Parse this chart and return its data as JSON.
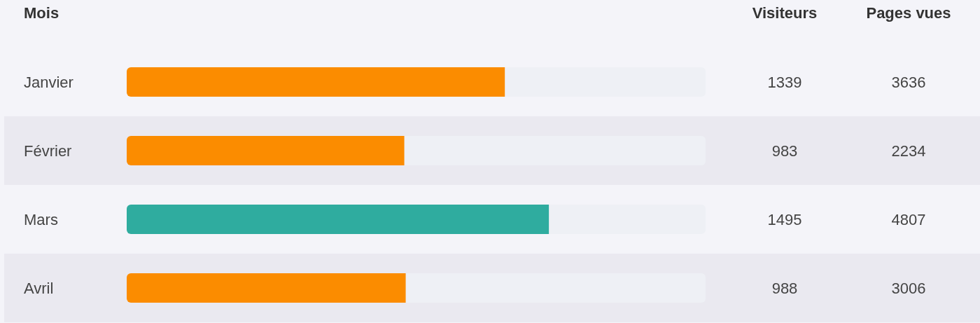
{
  "chart_data": {
    "type": "bar",
    "orientation": "horizontal",
    "ylabel": "Mois",
    "categories": [
      "Janvier",
      "Février",
      "Mars",
      "Avril"
    ],
    "series": [
      {
        "name": "Visiteurs",
        "values": [
          1339,
          983,
          1495,
          988
        ],
        "colors": [
          "#fb8c00",
          "#fb8c00",
          "#2fac9f",
          "#fb8c00"
        ]
      }
    ],
    "xlim": [
      0,
      2050
    ],
    "data_labels": true,
    "annotations": [
      "Pages vues",
      "3636",
      "2234",
      "4807",
      "3006"
    ]
  }
}
